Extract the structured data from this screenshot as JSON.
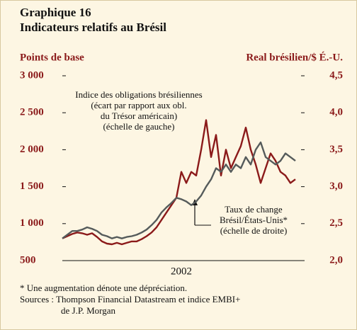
{
  "chart_data": {
    "type": "line",
    "title": "Graphique 16",
    "subtitle": "Indicateurs relatifs au Brésil",
    "y_label": "Points de base",
    "y2_label": "Real brésilien/$ É.-U.",
    "annotations": [
      [
        "Indice des obligations brésiliennes",
        "(écart par rapport aux obl.",
        "du Trésor américain)",
        "(échelle de gauche)"
      ],
      [
        "Taux de change",
        "Brésil/États-Unis*",
        "(échelle de droite)"
      ]
    ],
    "notes": [
      "* Une augmentation dénote une dépréciation.",
      "Sources : Thompson Financial Datastream et indice EMBI+",
      "de J.P. Morgan"
    ],
    "categories": [
      null,
      null,
      null,
      null,
      null,
      null,
      null,
      null,
      null,
      null,
      null,
      null,
      null,
      null,
      null,
      null,
      null,
      null,
      null,
      null,
      null,
      null,
      null,
      null,
      "2002",
      null,
      null,
      null,
      null,
      null,
      null,
      null,
      null,
      null,
      null,
      null,
      null,
      null,
      null,
      null,
      null,
      null,
      null,
      null,
      null,
      null,
      null,
      null
    ],
    "ylim": [
      500,
      3000
    ],
    "yticks": [
      500,
      {
        "value": 1000,
        "label": "1 000"
      },
      {
        "value": 1500,
        "label": "1 500"
      },
      {
        "value": 2000,
        "label": "2 000"
      },
      {
        "value": 2500,
        "label": "2 500"
      },
      {
        "value": 3000,
        "label": "3 000"
      }
    ],
    "y2lim": [
      2.0,
      4.5
    ],
    "y2ticks": [
      {
        "value": 2.0,
        "label": "2,0"
      },
      {
        "value": 2.5,
        "label": "2,5"
      },
      {
        "value": 3.0,
        "label": "3,0"
      },
      {
        "value": 3.5,
        "label": "3,5"
      },
      {
        "value": 4.0,
        "label": "4,0"
      },
      {
        "value": 4.5,
        "label": "4,5"
      }
    ],
    "series": [
      {
        "name": "Indice des obligations brésiliennes",
        "color": "#8b1a1a",
        "values": [
          800,
          830,
          860,
          880,
          870,
          850,
          870,
          820,
          760,
          730,
          720,
          740,
          720,
          740,
          760,
          760,
          790,
          830,
          880,
          950,
          1050,
          1150,
          1250,
          1350,
          1700,
          1550,
          1700,
          1650,
          2000,
          2400,
          1900,
          2200,
          1650,
          2000,
          1750,
          1900,
          2050,
          2300,
          2000,
          1800,
          1550,
          1750,
          1950,
          1850,
          1700,
          1650,
          1550,
          1600
        ]
      },
      {
        "name": "Taux de change Brésil/États-Unis",
        "color": "#555b5b",
        "axis": "y2",
        "values": [
          2.3,
          2.35,
          2.4,
          2.4,
          2.42,
          2.45,
          2.43,
          2.4,
          2.35,
          2.33,
          2.3,
          2.32,
          2.3,
          2.32,
          2.33,
          2.35,
          2.38,
          2.42,
          2.48,
          2.55,
          2.65,
          2.72,
          2.78,
          2.85,
          2.83,
          2.8,
          2.75,
          2.8,
          2.88,
          3.0,
          3.1,
          3.25,
          3.2,
          3.3,
          3.2,
          3.3,
          3.25,
          3.4,
          3.3,
          3.5,
          3.6,
          3.4,
          3.35,
          3.3,
          3.35,
          3.45,
          3.4,
          3.35
        ]
      }
    ]
  }
}
